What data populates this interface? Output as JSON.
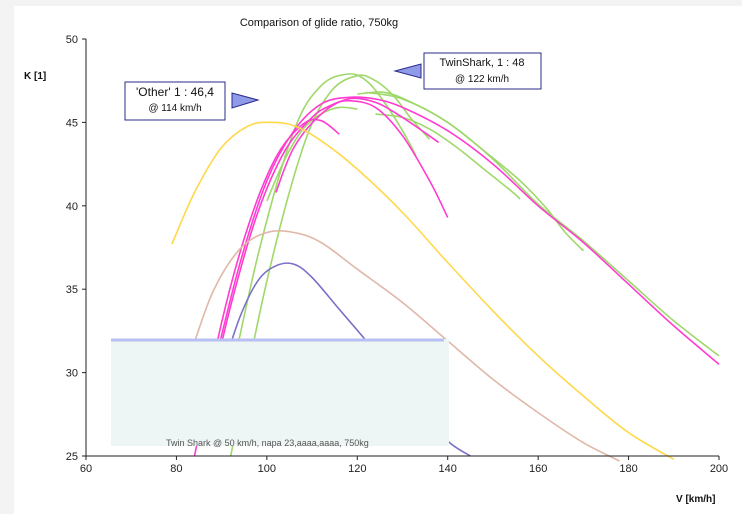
{
  "chart_data": {
    "type": "line",
    "title": "Comparison of glide ratio, 750kg",
    "xlabel": "V [km/h]",
    "ylabel": "K [1]",
    "xlim": [
      60,
      200
    ],
    "ylim": [
      25,
      50
    ],
    "x_ticks": [
      "60",
      "80",
      "100",
      "120",
      "140",
      "160",
      "180",
      "200"
    ],
    "y_ticks": [
      "25",
      "30",
      "35",
      "40",
      "45",
      "50"
    ],
    "grid": false,
    "annotations": [
      {
        "line1": "'Other' 1 : 46,4",
        "line2": "@ 114 km/h",
        "arrow": "right"
      },
      {
        "line1": "TwinShark, 1 : 48",
        "line2": "@ 122 km/h",
        "arrow": "left"
      }
    ],
    "legend_fragment": "Twin Shark @ 50 km/h, napa 23,aaaa,aaaa, 750kg",
    "series": [
      {
        "color": "#9fd86a",
        "x": [
          92,
          100,
          108,
          114,
          120,
          124,
          128,
          132,
          136
        ],
        "y": [
          25,
          35.5,
          43.5,
          46.8,
          47.8,
          47.5,
          46.6,
          45.2,
          44
        ]
      },
      {
        "color": "#9fd86a",
        "x": [
          90,
          98,
          106,
          112,
          118,
          122,
          126,
          130,
          133
        ],
        "y": [
          27,
          37,
          44.5,
          47.2,
          47.9,
          47.5,
          46.2,
          44.5,
          43
        ]
      },
      {
        "color": "#9fd86a",
        "x": [
          100,
          104,
          108,
          112,
          116,
          120
        ],
        "y": [
          40.3,
          42.8,
          44.6,
          45.5,
          45.9,
          45.8
        ]
      },
      {
        "color": "#9fd86a",
        "x": [
          120,
          126,
          132,
          140,
          148,
          156,
          162,
          166,
          170
        ],
        "y": [
          46.7,
          46.8,
          46.2,
          45,
          43.3,
          41.5,
          39.8,
          38.4,
          37.3
        ]
      },
      {
        "color": "#9fd86a",
        "x": [
          124,
          130,
          136,
          142,
          148,
          154,
          156
        ],
        "y": [
          45.5,
          45.3,
          44.6,
          43.5,
          42.2,
          40.9,
          40.4
        ]
      },
      {
        "color": "#9fd86a",
        "x": [
          122,
          130,
          140,
          150,
          160,
          170,
          180,
          190,
          200
        ],
        "y": [
          46.8,
          46.4,
          45,
          42.8,
          40.1,
          37.9,
          35.5,
          33.1,
          31
        ]
      },
      {
        "color": "#ff3ccf",
        "x": [
          88,
          94,
          100,
          106,
          112,
          118,
          124,
          130,
          140,
          150,
          160,
          170,
          180,
          190,
          200
        ],
        "y": [
          30,
          36.5,
          41.5,
          44.5,
          46.1,
          46.5,
          46.4,
          45.9,
          44.5,
          42.5,
          40,
          37.8,
          35.3,
          32.8,
          30.5
        ]
      },
      {
        "color": "#ff3ccf",
        "x": [
          86,
          92,
          98,
          104,
          110,
          114,
          118,
          124,
          130,
          136,
          140
        ],
        "y": [
          27,
          34,
          39.6,
          43.3,
          45.3,
          46,
          46.3,
          45.9,
          44.2,
          41.5,
          39.3
        ]
      },
      {
        "color": "#ff3ccf",
        "x": [
          84,
          90,
          96,
          102,
          108,
          112,
          116
        ],
        "y": [
          25,
          33,
          38.9,
          42.9,
          44.9,
          45.1,
          44.3
        ]
      },
      {
        "color": "#ff3ccf",
        "x": [
          102,
          106,
          112,
          118,
          124,
          130,
          138
        ],
        "y": [
          40.8,
          43.5,
          45.5,
          46.4,
          46.2,
          45.3,
          43.8
        ]
      },
      {
        "color": "#ffd84a",
        "x": [
          79,
          84,
          90,
          96,
          101,
          106,
          112,
          120,
          130,
          140,
          150,
          160,
          170,
          180,
          190
        ],
        "y": [
          37.7,
          40.8,
          43.5,
          44.8,
          45,
          44.8,
          43.9,
          42.2,
          39.6,
          36.6,
          33.7,
          31,
          28.6,
          26.4,
          24.8
        ]
      },
      {
        "color": "#e0b8a8",
        "x": [
          83,
          88,
          94,
          100,
          106,
          112,
          120,
          130,
          140,
          150,
          160,
          170,
          178
        ],
        "y": [
          31,
          34.8,
          37.4,
          38.4,
          38.4,
          37.8,
          36.2,
          34.2,
          31.9,
          29.6,
          27.6,
          25.8,
          24.7
        ]
      },
      {
        "color": "#7b72c8",
        "x": [
          90,
          94,
          98,
          102,
          106,
          110,
          116,
          122,
          128,
          134,
          140,
          145
        ],
        "y": [
          30,
          33.3,
          35.5,
          36.4,
          36.5,
          35.7,
          33.8,
          31.9,
          29.9,
          27.8,
          25.9,
          25
        ]
      }
    ]
  }
}
